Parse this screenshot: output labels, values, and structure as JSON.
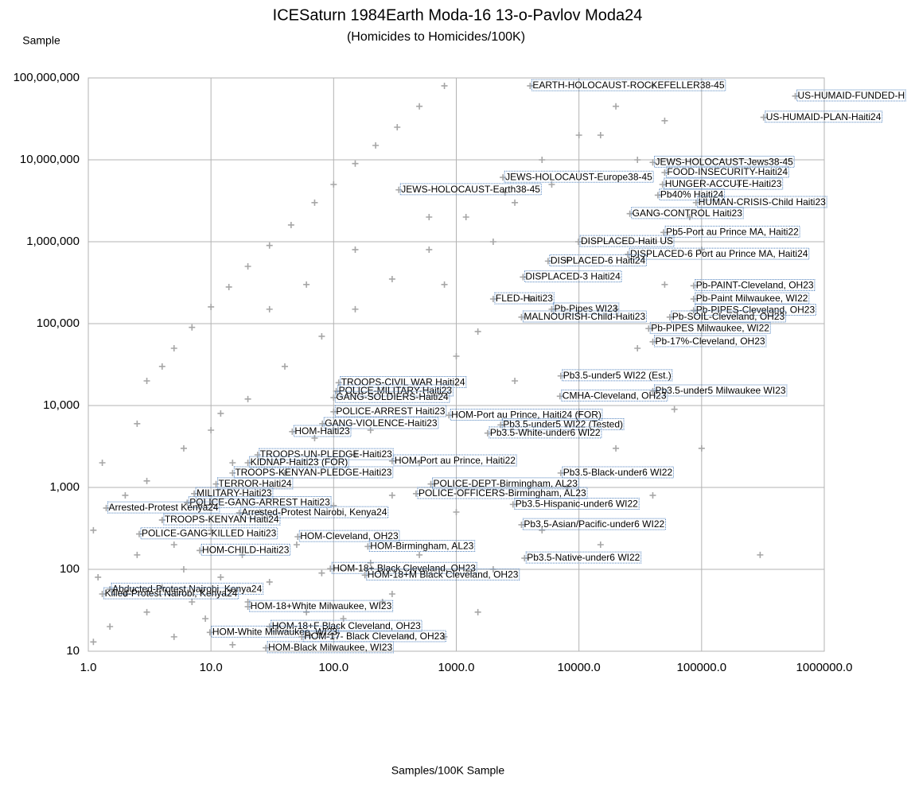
{
  "chart_data": {
    "type": "scatter",
    "title": "ICESaturn 1984Earth Moda-16 13-o-Pavlov Moda24",
    "subtitle": "(Homicides to Homicides/100K)",
    "y_label": "Sample",
    "x_label": "Samples/100K Sample",
    "log_x": true,
    "log_y": true,
    "grid": true,
    "xlim": [
      1,
      1000000
    ],
    "ylim": [
      10,
      100000000
    ],
    "xticks": [
      {
        "value": 1,
        "label": "1.0"
      },
      {
        "value": 10,
        "label": "10.0"
      },
      {
        "value": 100,
        "label": "100.0"
      },
      {
        "value": 1000,
        "label": "1000.0"
      },
      {
        "value": 10000,
        "label": "10000.0"
      },
      {
        "value": 100000,
        "label": "100000.0"
      },
      {
        "value": 1000000,
        "label": "1000000.0"
      }
    ],
    "yticks": [
      10,
      100,
      {
        "value": 1000,
        "label": "1,000"
      },
      {
        "value": 10000,
        "label": "10,000"
      },
      {
        "value": 100000,
        "label": "100,000"
      },
      {
        "value": 1000000,
        "label": "1,000,000"
      },
      {
        "value": 10000000,
        "label": "10,000,000"
      },
      {
        "value": 100000000,
        "label": "100,000,000"
      }
    ],
    "series": [
      {
        "color": "#a6a6a6",
        "x": [
          3,
          4,
          5,
          7,
          10,
          14,
          20,
          30,
          45,
          70,
          100,
          150,
          220,
          330,
          500,
          800,
          10,
          20,
          40,
          80,
          150,
          300,
          600,
          1200,
          2500,
          5000,
          10000,
          20000,
          40000,
          3000,
          6000,
          15000,
          30000,
          50000,
          80000,
          200000,
          100000,
          50000,
          20000,
          8000,
          4000,
          1500,
          800,
          2000,
          600,
          150,
          60,
          30,
          1000,
          3000,
          10000,
          30000,
          60000,
          20000,
          8000,
          5000,
          15000,
          40000,
          100000,
          300000,
          2000,
          1000,
          500,
          300,
          200,
          800,
          1500,
          1.1,
          1.2,
          1.5,
          2,
          2,
          2.5,
          3,
          3,
          4,
          4,
          5,
          5,
          6,
          7,
          8,
          9,
          10,
          12,
          15,
          15,
          18,
          20,
          25,
          30,
          35,
          40,
          50,
          60,
          70,
          80,
          100,
          120,
          150,
          200,
          250,
          300,
          400,
          500,
          1.3,
          1.1,
          2.5,
          6,
          12
        ],
        "y": [
          20000,
          30000,
          50000,
          90000,
          160000,
          280000,
          500000,
          900000,
          1600000,
          3000000,
          5000000,
          9000000,
          15000000,
          25000000,
          45000000,
          80000000,
          5000,
          12000,
          30000,
          70000,
          150000,
          350000,
          800000,
          2000000,
          4000000,
          10000000,
          20000000,
          45000000,
          80000000,
          3000000,
          5000000,
          20000000,
          10000000,
          30000000,
          2000000,
          5000000,
          800000,
          300000,
          150000,
          600000,
          200000,
          80000,
          300000,
          1000000,
          2000000,
          800000,
          300000,
          150000,
          40000,
          20000,
          8000,
          50000,
          9000,
          3000,
          1000,
          300,
          200,
          800,
          3000,
          150,
          100,
          500,
          2000,
          50,
          5000,
          15,
          30,
          300,
          80,
          20,
          50,
          800,
          150,
          30,
          1200,
          60,
          400,
          15,
          200,
          100,
          40,
          600,
          25,
          300,
          80,
          12,
          2000,
          150,
          40,
          500,
          70,
          20,
          1500,
          200,
          30,
          4000,
          90,
          600,
          25,
          2500,
          120,
          40,
          800,
          15,
          150,
          2000,
          13,
          6000,
          3000,
          8000
        ]
      }
    ],
    "annotations": [
      {
        "text": "EARTH-HOLOCAUST-ROCKEFELLER38-45",
        "x": 4000,
        "y": 80000000
      },
      {
        "text": "US-HUMAID-FUNDED-H",
        "x": 580000,
        "y": 60000000
      },
      {
        "text": "US-HUMAID-PLAN-Haiti24",
        "x": 320000,
        "y": 33000000
      },
      {
        "text": "JEWS-HOLOCAUST-Jews38-45",
        "x": 40000,
        "y": 9300000
      },
      {
        "text": "FOOD-INSECURITY-Haiti24",
        "x": 50000,
        "y": 7000000
      },
      {
        "text": "HUNGER-ACCUTE-Haiti23",
        "x": 48000,
        "y": 5000000
      },
      {
        "text": "JEWS-HOLOCAUST-Europe38-45",
        "x": 2400,
        "y": 6100000
      },
      {
        "text": "JEWS-HOLOCAUST-Earth38-45",
        "x": 340,
        "y": 4300000
      },
      {
        "text": "Pb40% Haiti24",
        "x": 44000,
        "y": 3700000
      },
      {
        "text": "HUMAN-CRISIS-Child Haiti23",
        "x": 90000,
        "y": 3000000
      },
      {
        "text": "GANG-CONTROL Haiti23",
        "x": 26000,
        "y": 2200000
      },
      {
        "text": "Pb5-Port au Prince MA, Haiti22",
        "x": 49000,
        "y": 1300000
      },
      {
        "text": "DISPLACED-Haiti US",
        "x": 9900,
        "y": 1000000
      },
      {
        "text": "DISPLACED-6 Port au Prince MA, Haiti24",
        "x": 25000,
        "y": 700000
      },
      {
        "text": "DISPLACED-6 Haiti24",
        "x": 5600,
        "y": 580000
      },
      {
        "text": "DISPLACED-3 Haiti24",
        "x": 3500,
        "y": 370000
      },
      {
        "text": "Pb-PAINT-Cleveland, OH23",
        "x": 86000,
        "y": 290000
      },
      {
        "text": "FLED-Haiti23",
        "x": 2000,
        "y": 200000
      },
      {
        "text": "Pb-Paint Milwaukee, WI22",
        "x": 86000,
        "y": 200000
      },
      {
        "text": "Pb-Pipes WI23",
        "x": 6000,
        "y": 150000
      },
      {
        "text": "Pb-PIPES-Cleveland, OH23",
        "x": 86000,
        "y": 145000
      },
      {
        "text": "MALNOURISH-Child-Haiti23",
        "x": 3400,
        "y": 120000
      },
      {
        "text": "Pb-SOIL-Cleveland, OH23",
        "x": 55000,
        "y": 120000
      },
      {
        "text": "Pb-PIPES Milwaukee, WI22",
        "x": 37000,
        "y": 87000
      },
      {
        "text": "Pb-17%-Cleveland, OH23",
        "x": 40000,
        "y": 60000
      },
      {
        "text": "Pb3.5-under5 WI22 (Est.)",
        "x": 7100,
        "y": 23000
      },
      {
        "text": "Pb3.5-under5 Milwaukee WI23",
        "x": 40000,
        "y": 15000
      },
      {
        "text": "CMHA-Cleveland, OH23",
        "x": 7000,
        "y": 13000
      },
      {
        "text": "TROOPS-CIVIL WAR Haiti24",
        "x": 110,
        "y": 19000
      },
      {
        "text": "POLICE-MILITARY-Haiti23",
        "x": 105,
        "y": 15000
      },
      {
        "text": "GANG-SOLDIERS-Haiti24",
        "x": 100,
        "y": 12500
      },
      {
        "text": "POLICE-ARREST Haiti23",
        "x": 100,
        "y": 8400
      },
      {
        "text": "HOM-Port au Prince, Haiti24 (FOR)",
        "x": 870,
        "y": 7600
      },
      {
        "text": "Pb3.5-under5 WI22 (Tested)",
        "x": 2300,
        "y": 5800
      },
      {
        "text": "GANG-VIOLENCE-Haiti23",
        "x": 81,
        "y": 6000
      },
      {
        "text": "Pb3.5-White-under6 WI22",
        "x": 1800,
        "y": 4600
      },
      {
        "text": "HOM-Haiti23",
        "x": 46,
        "y": 4800
      },
      {
        "text": "HOM-Port au Prince, Haiti22",
        "x": 300,
        "y": 2100
      },
      {
        "text": "TROOPS-UN-PLEDGE-Haiti23",
        "x": 24,
        "y": 2500
      },
      {
        "text": "KIDNAP-Haiti23 (FOR)",
        "x": 20,
        "y": 2000
      },
      {
        "text": "TROOPS-KENYAN-PLEDGE-Haiti23",
        "x": 15,
        "y": 1500
      },
      {
        "text": "Pb3.5-Black-under6 WI22",
        "x": 7100,
        "y": 1500
      },
      {
        "text": "TERROR-Haiti24",
        "x": 11,
        "y": 1100
      },
      {
        "text": "POLICE-DEPT-Birmingham, AL23",
        "x": 620,
        "y": 1100
      },
      {
        "text": "MILITARY-Haiti23",
        "x": 7.3,
        "y": 840
      },
      {
        "text": "POLICE-OFFICERS-Birmingham, AL23",
        "x": 470,
        "y": 840
      },
      {
        "text": "POLICE-GANG-ARREST Haiti23",
        "x": 6.4,
        "y": 650
      },
      {
        "text": "Pb3.5-Hispanic-under6 WI22",
        "x": 2900,
        "y": 620
      },
      {
        "text": "Arrested-Protest Kenya24",
        "x": 1.4,
        "y": 560
      },
      {
        "text": "Arrested-Protest Nairobi, Kenya24",
        "x": 17,
        "y": 490
      },
      {
        "text": "TROOPS-KENYAN Haiti24",
        "x": 4,
        "y": 400
      },
      {
        "text": "Pb3.5-Asian/Pacific-under6 WI22",
        "x": 3400,
        "y": 350
      },
      {
        "text": "POLICE-GANG-KILLED Haiti23",
        "x": 2.6,
        "y": 270
      },
      {
        "text": "HOM-Cleveland, OH23",
        "x": 51,
        "y": 250
      },
      {
        "text": "HOM-Birmingham, AL23",
        "x": 190,
        "y": 190
      },
      {
        "text": "HOM-CHILD-Haiti23",
        "x": 8.1,
        "y": 170
      },
      {
        "text": "Pb3.5-Native-under6 WI22",
        "x": 3600,
        "y": 137
      },
      {
        "text": "HOM-18+ Black Cleveland, OH23",
        "x": 94,
        "y": 102
      },
      {
        "text": "HOM-18+M Black Cleveland, OH23",
        "x": 180,
        "y": 85
      },
      {
        "text": "Abducted-Protest Nairobi, Kenya24",
        "x": 1.5,
        "y": 57
      },
      {
        "text": "Killed-Protest Nairobi, Kenya24",
        "x": 1.3,
        "y": 50
      },
      {
        "text": "HOM-18+White Milwaukee, WI23",
        "x": 20,
        "y": 35
      },
      {
        "text": "HOM-18+F Black Cleveland, OH23",
        "x": 30,
        "y": 20
      },
      {
        "text": "HOM-White Milwaukee, WI23",
        "x": 9.8,
        "y": 17
      },
      {
        "text": "HOM-17- Black Cleveland, OH23",
        "x": 55,
        "y": 15
      },
      {
        "text": "HOM-Black Milwaukee, WI23",
        "x": 28,
        "y": 11
      }
    ]
  }
}
